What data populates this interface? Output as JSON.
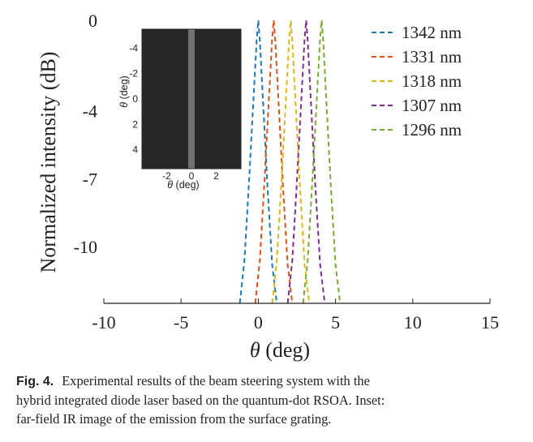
{
  "chart_data": {
    "type": "line",
    "xlabel_symbol": "θ",
    "xlabel_unit": " (deg)",
    "ylabel": "Normalized intensity (dB)",
    "xlim": [
      -10,
      15
    ],
    "ylim": [
      -12.5,
      0
    ],
    "x_ticks": [
      "-10",
      "-5",
      "0",
      "5",
      "10",
      "15"
    ],
    "x_tick_values": [
      -10,
      -5,
      0,
      5,
      10,
      15
    ],
    "y_ticks": [
      "0",
      "-4",
      "-7",
      "-10"
    ],
    "y_tick_values": [
      0,
      -4,
      -7,
      -10
    ],
    "line_style": "dashed",
    "legend_position": "top-right",
    "series": [
      {
        "name": "1342 nm",
        "color": "#1f77b4",
        "center": 0.0,
        "x": [
          -1.2,
          -0.9,
          -0.6,
          -0.3,
          -0.1,
          0.0,
          0.1,
          0.3,
          0.6,
          0.9,
          1.2
        ],
        "y": [
          -12.5,
          -10.6,
          -7.1,
          -3.3,
          -0.8,
          0.0,
          -0.9,
          -3.5,
          -7.4,
          -10.8,
          -12.5
        ]
      },
      {
        "name": "1331 nm",
        "color": "#d95319",
        "center": 1.0,
        "x": [
          -0.2,
          0.1,
          0.4,
          0.7,
          0.9,
          1.0,
          1.1,
          1.3,
          1.6,
          1.9,
          2.2
        ],
        "y": [
          -12.5,
          -10.6,
          -7.1,
          -3.3,
          -0.8,
          0.0,
          -0.9,
          -3.5,
          -7.4,
          -10.8,
          -12.5
        ]
      },
      {
        "name": "1318 nm",
        "color": "#d9b81a",
        "center": 2.1,
        "x": [
          0.9,
          1.2,
          1.5,
          1.8,
          2.0,
          2.1,
          2.2,
          2.4,
          2.7,
          3.0,
          3.3
        ],
        "y": [
          -12.5,
          -10.6,
          -7.1,
          -3.3,
          -0.8,
          0.0,
          -0.9,
          -3.5,
          -7.4,
          -10.8,
          -12.5
        ]
      },
      {
        "name": "1307 nm",
        "color": "#7e2f8e",
        "center": 3.1,
        "x": [
          1.9,
          2.2,
          2.5,
          2.8,
          3.0,
          3.1,
          3.2,
          3.4,
          3.7,
          4.0,
          4.3
        ],
        "y": [
          -12.5,
          -10.6,
          -7.1,
          -3.3,
          -0.8,
          0.0,
          -0.9,
          -3.5,
          -7.4,
          -10.8,
          -12.5
        ]
      },
      {
        "name": "1296 nm",
        "color": "#77ac30",
        "center": 4.1,
        "x": [
          2.9,
          3.2,
          3.5,
          3.8,
          4.0,
          4.1,
          4.2,
          4.4,
          4.7,
          5.0,
          5.3
        ],
        "y": [
          -12.5,
          -10.6,
          -7.1,
          -3.3,
          -0.8,
          0.0,
          -0.9,
          -3.5,
          -7.4,
          -10.8,
          -12.5
        ]
      }
    ],
    "inset": {
      "description_type": "heatmap",
      "xlabel_symbol": "θ",
      "xlabel_unit": " (deg)",
      "ylabel_symbol": "θ",
      "ylabel_unit": " (deg)",
      "xlim": [
        -4,
        4
      ],
      "ylim": [
        -5.5,
        5.5
      ],
      "x_ticks": [
        "-2",
        "0",
        "2"
      ],
      "x_tick_values": [
        -2,
        0,
        2
      ],
      "y_ticks": [
        "-4",
        "-2",
        "0",
        "2",
        "4"
      ],
      "y_tick_values": [
        -4,
        -2,
        0,
        2,
        4
      ],
      "background_color": "#262626",
      "stripe_color": "#8c8c8c",
      "stripe_center": 0.0
    }
  },
  "caption": {
    "fig_label": "Fig. 4.",
    "line1": "Experimental results of the beam steering system with the",
    "line2": "hybrid integrated diode laser based on the quantum-dot RSOA. Inset:",
    "line3": "far-field IR image of the emission from the surface grating."
  }
}
